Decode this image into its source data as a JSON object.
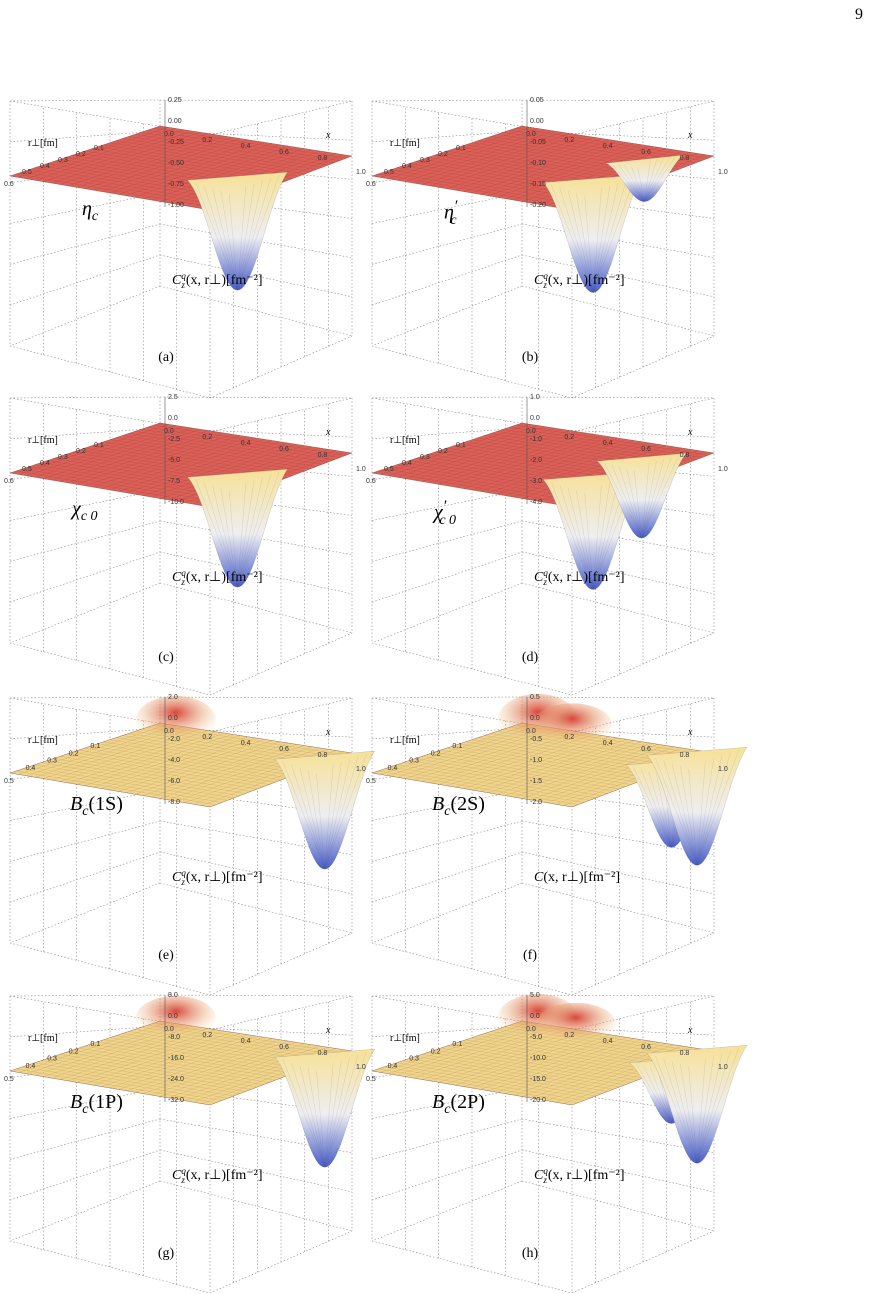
{
  "page_number": "9",
  "panels": [
    {
      "id": "a",
      "caption": "(a)",
      "particle": "η",
      "particle_sub": "c",
      "particle_prime": "",
      "r_label": "r⊥[fm]",
      "x_label": "x",
      "z_label": "C",
      "z_label_sup": "q",
      "z_label_sub": "z",
      "z_label_rest": "(x, r⊥)[fm⁻²]",
      "r_ticks": [
        "0.6",
        "0.5",
        "0.4",
        "0.3",
        "0.2",
        "0.1"
      ],
      "x_ticks": [
        "0.0",
        "0.2",
        "0.4",
        "0.6",
        "0.8",
        "1.0"
      ],
      "z_ticks": [
        "0.25",
        "0.00",
        "-0.25",
        "-0.50",
        "-0.75",
        "-1.00"
      ],
      "surface_style": "red",
      "wells": [
        {
          "x": 0.45,
          "depth": 1.0
        }
      ],
      "bumps": []
    },
    {
      "id": "b",
      "caption": "(b)",
      "particle": "η",
      "particle_sub": "c",
      "particle_prime": "′",
      "r_label": "r⊥[fm]",
      "x_label": "x",
      "z_label": "C",
      "z_label_sup": "q",
      "z_label_sub": "z",
      "z_label_rest": "(x, r⊥)[fm⁻²]",
      "r_ticks": [
        "0.6",
        "0.5",
        "0.4",
        "0.3",
        "0.2",
        "0.1"
      ],
      "x_ticks": [
        "0.0",
        "0.2",
        "0.4",
        "0.6",
        "0.8",
        "1.0"
      ],
      "z_ticks": [
        "0.05",
        "0.00",
        "-0.05",
        "-0.10",
        "-0.15",
        "-0.20"
      ],
      "surface_style": "red",
      "wells": [
        {
          "x": 0.4,
          "depth": 1.0
        },
        {
          "x": 0.8,
          "depth": 0.35
        }
      ],
      "bumps": []
    },
    {
      "id": "c",
      "caption": "(c)",
      "particle": "χ",
      "particle_sub": "c 0",
      "particle_prime": "",
      "r_label": "r⊥[fm]",
      "x_label": "x",
      "z_label": "C",
      "z_label_sup": "q",
      "z_label_sub": "z",
      "z_label_rest": "(x, r⊥)[fm⁻²]",
      "r_ticks": [
        "0.6",
        "0.5",
        "0.4",
        "0.3",
        "0.2",
        "0.1"
      ],
      "x_ticks": [
        "0.0",
        "0.2",
        "0.4",
        "0.6",
        "0.8",
        "1.0"
      ],
      "z_ticks": [
        "2.5",
        "0.0",
        "-2.5",
        "-5.0",
        "-7.5",
        "-10.0"
      ],
      "surface_style": "red",
      "wells": [
        {
          "x": 0.45,
          "depth": 1.0
        }
      ],
      "bumps": []
    },
    {
      "id": "d",
      "caption": "(d)",
      "particle": "χ",
      "particle_sub": "c 0",
      "particle_prime": "′",
      "r_label": "r⊥[fm]",
      "x_label": "x",
      "z_label": "C",
      "z_label_sup": "q",
      "z_label_sub": "z",
      "z_label_rest": "(x, r⊥)[fm⁻²]",
      "r_ticks": [
        "0.6",
        "0.5",
        "0.4",
        "0.3",
        "0.2",
        "0.1"
      ],
      "x_ticks": [
        "0.0",
        "0.2",
        "0.4",
        "0.6",
        "0.8",
        "1.0"
      ],
      "z_ticks": [
        "1.0",
        "0.0",
        "-1.0",
        "-2.0",
        "-3.0",
        "-4.0"
      ],
      "surface_style": "red",
      "wells": [
        {
          "x": 0.4,
          "depth": 1.0
        },
        {
          "x": 0.78,
          "depth": 0.7
        }
      ],
      "bumps": []
    },
    {
      "id": "e",
      "caption": "(e)",
      "particle": "B",
      "particle_sub": "c",
      "particle_prime": "",
      "particle_tail": "(1S)",
      "r_label": "r⊥[fm]",
      "x_label": "x",
      "z_label": "C",
      "z_label_sup": "q",
      "z_label_sub": "z",
      "z_label_rest": "(x, r⊥)[fm⁻²]",
      "r_ticks": [
        "0.5",
        "0.4",
        "0.3",
        "0.2",
        "0.1"
      ],
      "x_ticks": [
        "0.0",
        "0.2",
        "0.4",
        "0.6",
        "0.8",
        "1.0"
      ],
      "z_ticks": [
        "2.0",
        "0.0",
        "-2.0",
        "-4.0",
        "-6.0",
        "-8.0"
      ],
      "surface_style": "yellow",
      "wells": [
        {
          "x": 0.82,
          "depth": 1.0
        }
      ],
      "bumps": [
        {
          "x": 0.05,
          "height": 0.5
        }
      ]
    },
    {
      "id": "f",
      "caption": "(f)",
      "particle": "B",
      "particle_sub": "c",
      "particle_prime": "",
      "particle_tail": "(2S)",
      "r_label": "r⊥[fm]",
      "x_label": "x",
      "z_label": "C",
      "z_label_sup": "",
      "z_label_sub": "",
      "z_label_rest": "(x, r⊥)[fm⁻²]",
      "r_ticks": [
        "0.5",
        "0.4",
        "0.3",
        "0.2",
        "0.1"
      ],
      "x_ticks": [
        "0.0",
        "0.2",
        "0.4",
        "0.6",
        "0.8",
        "1.0"
      ],
      "z_ticks": [
        "0.5",
        "0.0",
        "-0.5",
        "-1.0",
        "-1.5",
        "-2.0"
      ],
      "surface_style": "yellow",
      "wells": [
        {
          "x": 0.7,
          "depth": 0.75
        },
        {
          "x": 0.9,
          "depth": 1.0
        }
      ],
      "bumps": [
        {
          "x": 0.05,
          "height": 0.6
        },
        {
          "x": 0.35,
          "height": 0.4
        }
      ]
    },
    {
      "id": "g",
      "caption": "(g)",
      "particle": "B",
      "particle_sub": "c",
      "particle_prime": "",
      "particle_tail": "(1P)",
      "r_label": "r⊥[fm]",
      "x_label": "x",
      "z_label": "C",
      "z_label_sup": "q",
      "z_label_sub": "z",
      "z_label_rest": "(x, r⊥)[fm⁻²]",
      "r_ticks": [
        "0.5",
        "0.4",
        "0.3",
        "0.2",
        "0.1"
      ],
      "x_ticks": [
        "0.0",
        "0.2",
        "0.4",
        "0.6",
        "0.8",
        "1.0"
      ],
      "z_ticks": [
        "8.0",
        "0.0",
        "-8.0",
        "-16.0",
        "-24.0",
        "-32.0"
      ],
      "surface_style": "yellow",
      "wells": [
        {
          "x": 0.82,
          "depth": 1.0
        }
      ],
      "bumps": [
        {
          "x": 0.05,
          "height": 0.4
        }
      ]
    },
    {
      "id": "h",
      "caption": "(h)",
      "particle": "B",
      "particle_sub": "c",
      "particle_prime": "",
      "particle_tail": "(2P)",
      "r_label": "r⊥[fm]",
      "x_label": "x",
      "z_label": "C",
      "z_label_sup": "q",
      "z_label_sub": "z",
      "z_label_rest": "(x, r⊥)[fm⁻²]",
      "r_ticks": [
        "0.5",
        "0.4",
        "0.3",
        "0.2",
        "0.1"
      ],
      "x_ticks": [
        "0.0",
        "0.2",
        "0.4",
        "0.6",
        "0.8",
        "1.0"
      ],
      "z_ticks": [
        "5.0",
        "0.0",
        "-5.0",
        "-10.0",
        "-15.0",
        "-20.0"
      ],
      "surface_style": "yellow",
      "wells": [
        {
          "x": 0.7,
          "depth": 0.55
        },
        {
          "x": 0.9,
          "depth": 1.0
        }
      ],
      "bumps": [
        {
          "x": 0.05,
          "height": 0.5
        },
        {
          "x": 0.38,
          "height": 0.35
        }
      ]
    }
  ]
}
